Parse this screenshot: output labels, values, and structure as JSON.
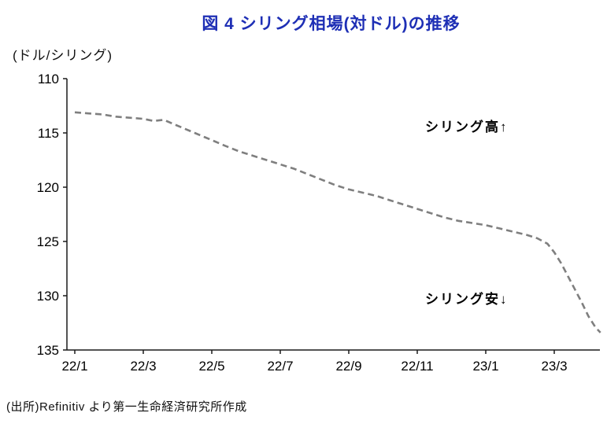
{
  "source": "(出所)Refinitiv より第一生命経済研究所作成",
  "colors": {
    "title": "#1e2fb5",
    "line": "#7f7f7f",
    "axis": "#1a1a1a",
    "text": "#000000"
  },
  "chart_data": {
    "type": "line",
    "title": "図 4 シリング相場(対ドル)の推移",
    "unit_label": "(ドル/シリング)",
    "xlabel": "",
    "ylabel": "ドル/シリング",
    "y_axis_inverted": true,
    "ylim": [
      110,
      135
    ],
    "y_ticks": [
      110,
      115,
      120,
      125,
      130,
      135
    ],
    "x_tick_labels": [
      "22/1",
      "22/3",
      "22/5",
      "22/7",
      "22/9",
      "22/11",
      "23/1",
      "23/3"
    ],
    "x_tick_positions": [
      0,
      2,
      4,
      6,
      8,
      10,
      12,
      14
    ],
    "grid": false,
    "legend": "none",
    "annotations": [
      {
        "text": "シリング高↑",
        "position": "upper-right"
      },
      {
        "text": "シリング安↓",
        "position": "lower-right"
      }
    ],
    "series": [
      {
        "name": "シリング相場(対ドル)",
        "style": "dashed",
        "color": "#7f7f7f",
        "x": [
          0,
          0.4,
          0.8,
          1.2,
          1.6,
          2.0,
          2.3,
          2.6,
          2.9,
          3.2,
          3.5,
          3.8,
          4.1,
          4.4,
          4.8,
          5.2,
          5.6,
          6.0,
          6.4,
          6.8,
          7.2,
          7.6,
          8.0,
          8.4,
          8.8,
          9.2,
          9.6,
          10.0,
          10.4,
          10.8,
          11.2,
          11.6,
          12.0,
          12.4,
          12.8,
          13.2,
          13.5,
          13.8,
          14.0,
          14.2,
          14.4,
          14.6,
          14.8,
          15.0,
          15.2,
          15.35
        ],
        "y": [
          113.1,
          113.2,
          113.3,
          113.5,
          113.6,
          113.7,
          113.9,
          113.8,
          114.2,
          114.6,
          115.0,
          115.4,
          115.8,
          116.2,
          116.7,
          117.1,
          117.5,
          117.9,
          118.3,
          118.8,
          119.3,
          119.8,
          120.2,
          120.5,
          120.8,
          121.2,
          121.6,
          122.0,
          122.4,
          122.8,
          123.1,
          123.3,
          123.5,
          123.8,
          124.1,
          124.4,
          124.7,
          125.2,
          126.0,
          127.0,
          128.2,
          129.4,
          130.6,
          131.9,
          132.9,
          133.4
        ]
      }
    ]
  }
}
